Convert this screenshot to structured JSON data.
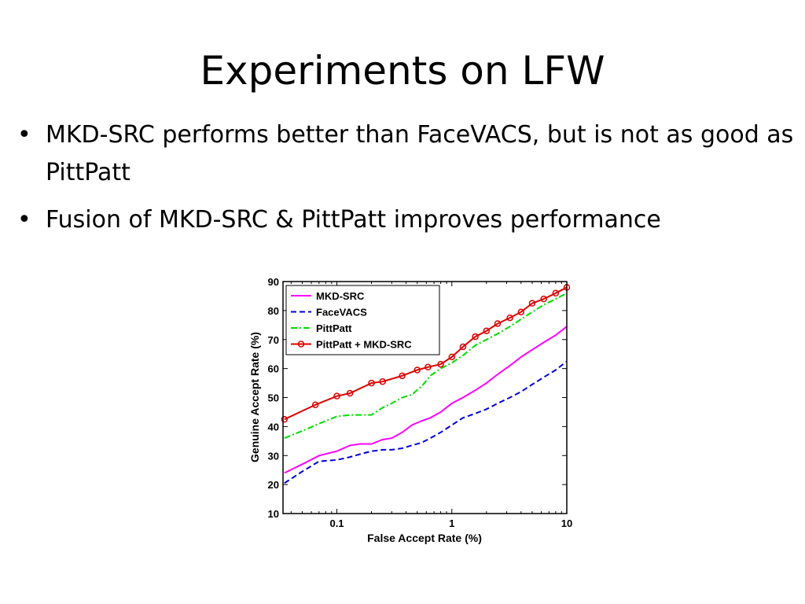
{
  "slide": {
    "title": "Experiments on LFW",
    "bullets": [
      "MKD-SRC performs better than FaceVACS, but is not as good as PittPatt",
      "Fusion of MKD-SRC & PittPatt improves performance"
    ]
  },
  "chart_data": {
    "type": "line",
    "title": "",
    "xlabel": "False Accept Rate (%)",
    "ylabel": "Genuine Accept Rate (%)",
    "xscale": "log",
    "xlim": [
      0.034,
      10
    ],
    "ylim": [
      10,
      90
    ],
    "xticks": [
      0.1,
      1,
      10
    ],
    "xtick_labels": [
      "0.1",
      "1",
      "10"
    ],
    "yticks": [
      10,
      20,
      30,
      40,
      50,
      60,
      70,
      80,
      90
    ],
    "ytick_labels": [
      "10",
      "20",
      "30",
      "40",
      "50",
      "60",
      "70",
      "80",
      "90"
    ],
    "grid": false,
    "legend_position": "top-left",
    "series": [
      {
        "name": "MKD-SRC",
        "color": "#ff00ff",
        "line_style": "solid",
        "marker": "none",
        "x": [
          0.035,
          0.05,
          0.07,
          0.1,
          0.13,
          0.16,
          0.2,
          0.25,
          0.3,
          0.37,
          0.45,
          0.55,
          0.65,
          0.8,
          1,
          1.25,
          1.6,
          2,
          2.5,
          3.2,
          4,
          5,
          6.3,
          8,
          10
        ],
        "y": [
          24,
          27,
          30,
          31.5,
          33.5,
          34,
          34,
          35.5,
          36,
          38,
          40.5,
          42,
          43,
          45,
          48,
          50,
          52.5,
          55,
          58,
          61,
          64,
          66.5,
          69,
          71.5,
          74.5
        ]
      },
      {
        "name": "FaceVACS",
        "color": "#0000dd",
        "line_style": "dashed",
        "marker": "none",
        "x": [
          0.035,
          0.05,
          0.07,
          0.1,
          0.13,
          0.16,
          0.2,
          0.25,
          0.3,
          0.37,
          0.45,
          0.55,
          0.65,
          0.8,
          1,
          1.25,
          1.6,
          2,
          2.5,
          3.2,
          4,
          5,
          6.3,
          8,
          10
        ],
        "y": [
          20.5,
          24.5,
          28,
          28.5,
          29.5,
          30.5,
          31.5,
          32,
          32,
          32.5,
          33.5,
          34.5,
          36,
          38,
          40.5,
          43,
          44.5,
          46,
          48,
          50,
          52,
          54.5,
          57,
          59.5,
          62.5
        ]
      },
      {
        "name": "PittPatt",
        "color": "#00dd00",
        "line_style": "dash-dot",
        "marker": "none",
        "x": [
          0.035,
          0.05,
          0.07,
          0.1,
          0.13,
          0.16,
          0.2,
          0.25,
          0.3,
          0.37,
          0.45,
          0.55,
          0.65,
          0.8,
          1,
          1.25,
          1.6,
          2,
          2.5,
          3.2,
          4,
          5,
          6.3,
          8,
          10
        ],
        "y": [
          36,
          38.5,
          41,
          43.5,
          44,
          44,
          44,
          46.5,
          48,
          50,
          51,
          54,
          57.5,
          60,
          62,
          64.5,
          68,
          70,
          72,
          74.5,
          77,
          79.5,
          82,
          84,
          86
        ]
      },
      {
        "name": "PittPatt + MKD-SRC",
        "color": "#dd0000",
        "line_style": "solid",
        "marker": "circle",
        "x": [
          0.035,
          0.065,
          0.1,
          0.13,
          0.2,
          0.25,
          0.37,
          0.5,
          0.62,
          0.8,
          1,
          1.25,
          1.6,
          2,
          2.5,
          3.2,
          4,
          5,
          6.3,
          8,
          10
        ],
        "y": [
          42.5,
          47.5,
          50.5,
          51.5,
          55,
          55.5,
          57.5,
          59.5,
          60.5,
          61.5,
          64,
          67.5,
          71,
          73,
          75.5,
          77.5,
          79.5,
          82.5,
          84,
          86,
          88
        ]
      }
    ]
  }
}
